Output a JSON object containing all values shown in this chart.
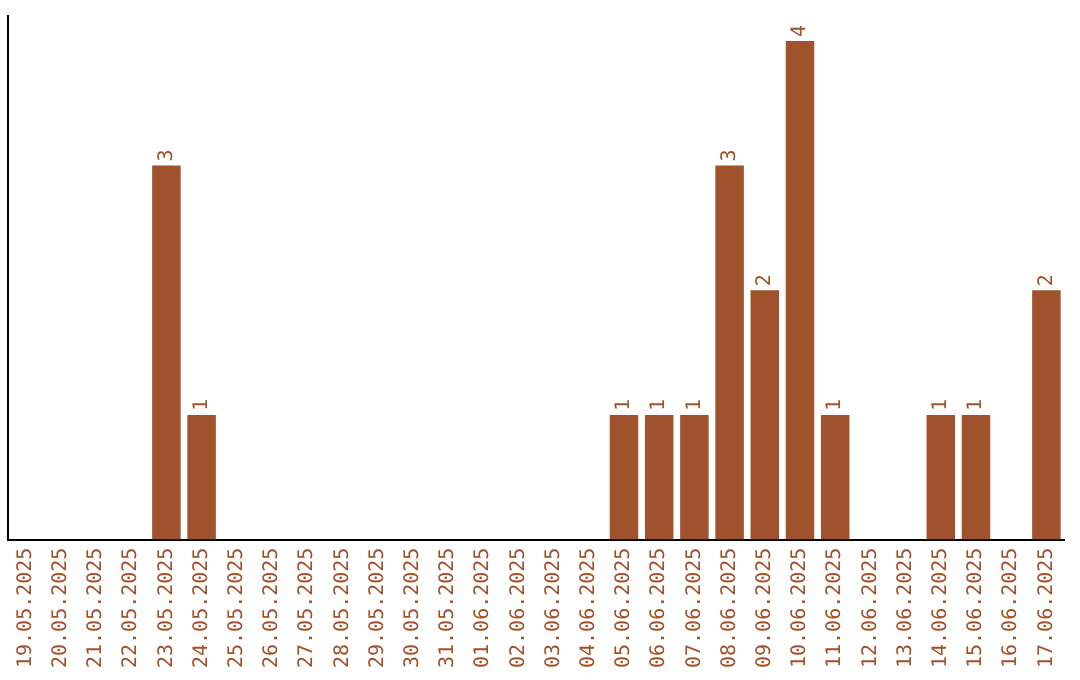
{
  "chart_data": {
    "type": "bar",
    "categories": [
      "19.05.2025",
      "20.05.2025",
      "21.05.2025",
      "22.05.2025",
      "23.05.2025",
      "24.05.2025",
      "25.05.2025",
      "26.05.2025",
      "27.05.2025",
      "28.05.2025",
      "29.05.2025",
      "30.05.2025",
      "31.05.2025",
      "01.06.2025",
      "02.06.2025",
      "03.06.2025",
      "04.06.2025",
      "05.06.2025",
      "06.06.2025",
      "07.06.2025",
      "08.06.2025",
      "09.06.2025",
      "10.06.2025",
      "11.06.2025",
      "12.06.2025",
      "13.06.2025",
      "14.06.2025",
      "15.06.2025",
      "16.06.2025",
      "17.06.2025"
    ],
    "values": [
      null,
      null,
      null,
      null,
      3,
      1,
      null,
      null,
      null,
      null,
      null,
      null,
      null,
      null,
      null,
      null,
      null,
      1,
      1,
      1,
      3,
      2,
      4,
      1,
      null,
      null,
      1,
      1,
      null,
      2
    ],
    "color": "#a0522d",
    "ylim": [
      0,
      4.2
    ],
    "tick_labels": "x",
    "data_labels": true,
    "grid": false,
    "legend": false
  }
}
